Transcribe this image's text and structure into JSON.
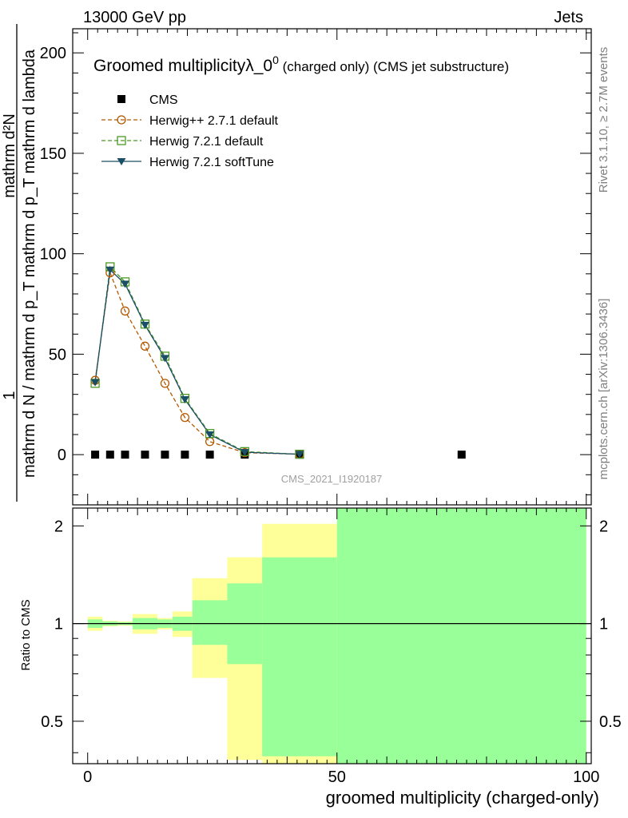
{
  "header": {
    "left": "13000 GeV pp",
    "right": "Jets"
  },
  "side": {
    "rivet": "Rivet 3.1.10, ≥ 2.7M events",
    "mcplots": "mcplots.cern.ch [arXiv:1306.3436]"
  },
  "main": {
    "title": "Groomed multiplicityλ_0",
    "title_sup": "0",
    "title_suffix1": " (charged only)",
    "title_suffix2": " (CMS jet substructure)",
    "ylabel_numer": "mathrm d²N",
    "ylabel_denom": "mathrm d N / mathrm d p_T mathrm d p_T mathrm d lambda",
    "ylabel_one": "1",
    "watermark": "CMS_2021_I1920187"
  },
  "ratio": {
    "ylabel": "Ratio to CMS"
  },
  "xlabel": "groomed multiplicity (charged-only)",
  "colors": {
    "cms": "#000000",
    "herwigpp": "#b35900",
    "herwig721": "#4d9926",
    "softtune": "#1a4d66",
    "band_inner": "#99ff99",
    "band_outer": "#ffff99"
  },
  "chart_data": [
    {
      "type": "line",
      "title": "Groomed multiplicityλ_0^0 (charged only) (CMS jet substructure)",
      "xlim": [
        -3,
        101
      ],
      "ylim": [
        -25,
        212
      ],
      "yticks": [
        0,
        50,
        100,
        150,
        200
      ],
      "legend": "top-left",
      "series": [
        {
          "name": "CMS",
          "marker": "square",
          "x": [
            1.5,
            4.5,
            7.5,
            11.5,
            15.5,
            19.5,
            24.5,
            31.5,
            42.5,
            75
          ],
          "y": [
            0,
            0,
            0,
            0,
            0,
            0,
            0,
            0,
            0,
            0
          ]
        },
        {
          "name": "Herwig++ 2.7.1 default",
          "marker": "circle",
          "x": [
            1.5,
            4.5,
            7.5,
            11.5,
            15.5,
            19.5,
            24.5,
            31.5,
            42.5
          ],
          "y": [
            37,
            90.5,
            71.5,
            54,
            35.5,
            18.5,
            6.5,
            1,
            0.2
          ]
        },
        {
          "name": "Herwig 7.2.1 default",
          "marker": "open-square",
          "x": [
            1.5,
            4.5,
            7.5,
            11.5,
            15.5,
            19.5,
            24.5,
            31.5,
            42.5
          ],
          "y": [
            35.5,
            93.5,
            86,
            65,
            49,
            28,
            10.5,
            1.5,
            0.2
          ]
        },
        {
          "name": "Herwig 7.2.1 softTune",
          "marker": "triangle-down",
          "x": [
            1.5,
            4.5,
            7.5,
            11.5,
            15.5,
            19.5,
            24.5,
            31.5,
            42.5
          ],
          "y": [
            36,
            92,
            85,
            64.5,
            48,
            27.5,
            10,
            1.2,
            0.2
          ]
        }
      ]
    },
    {
      "type": "area",
      "ylabel": "Ratio to CMS",
      "xlabel": "groomed multiplicity (charged-only)",
      "xlim": [
        -3,
        101
      ],
      "xticks": [
        0,
        50,
        100
      ],
      "ylim": [
        0.37,
        2.27
      ],
      "yticks": [
        0.5,
        1,
        2
      ],
      "reference_line": 1,
      "bands": [
        {
          "x0": 0,
          "x1": 3,
          "inner": [
            0.97,
            1.03
          ],
          "outer": [
            0.95,
            1.05
          ]
        },
        {
          "x0": 3,
          "x1": 6,
          "inner": [
            0.985,
            1.015
          ],
          "outer": [
            0.98,
            1.02
          ]
        },
        {
          "x0": 6,
          "x1": 9,
          "inner": [
            0.99,
            1.01
          ],
          "outer": [
            0.985,
            1.015
          ]
        },
        {
          "x0": 9,
          "x1": 14,
          "inner": [
            0.96,
            1.04
          ],
          "outer": [
            0.93,
            1.07
          ]
        },
        {
          "x0": 14,
          "x1": 17,
          "inner": [
            0.97,
            1.03
          ],
          "outer": [
            0.96,
            1.04
          ]
        },
        {
          "x0": 17,
          "x1": 21,
          "inner": [
            0.95,
            1.05
          ],
          "outer": [
            0.91,
            1.09
          ]
        },
        {
          "x0": 21,
          "x1": 28,
          "inner": [
            0.86,
            1.18
          ],
          "outer": [
            0.68,
            1.38
          ]
        },
        {
          "x0": 28,
          "x1": 35,
          "inner": [
            0.75,
            1.33
          ],
          "outer": [
            0.38,
            1.6
          ]
        },
        {
          "x0": 35,
          "x1": 50,
          "inner": [
            0.39,
            1.6
          ],
          "outer": [
            0.37,
            2.03
          ]
        },
        {
          "x0": 50,
          "x1": 100,
          "inner": [
            0.37,
            2.27
          ],
          "outer": [
            0.37,
            2.27
          ]
        }
      ]
    }
  ]
}
